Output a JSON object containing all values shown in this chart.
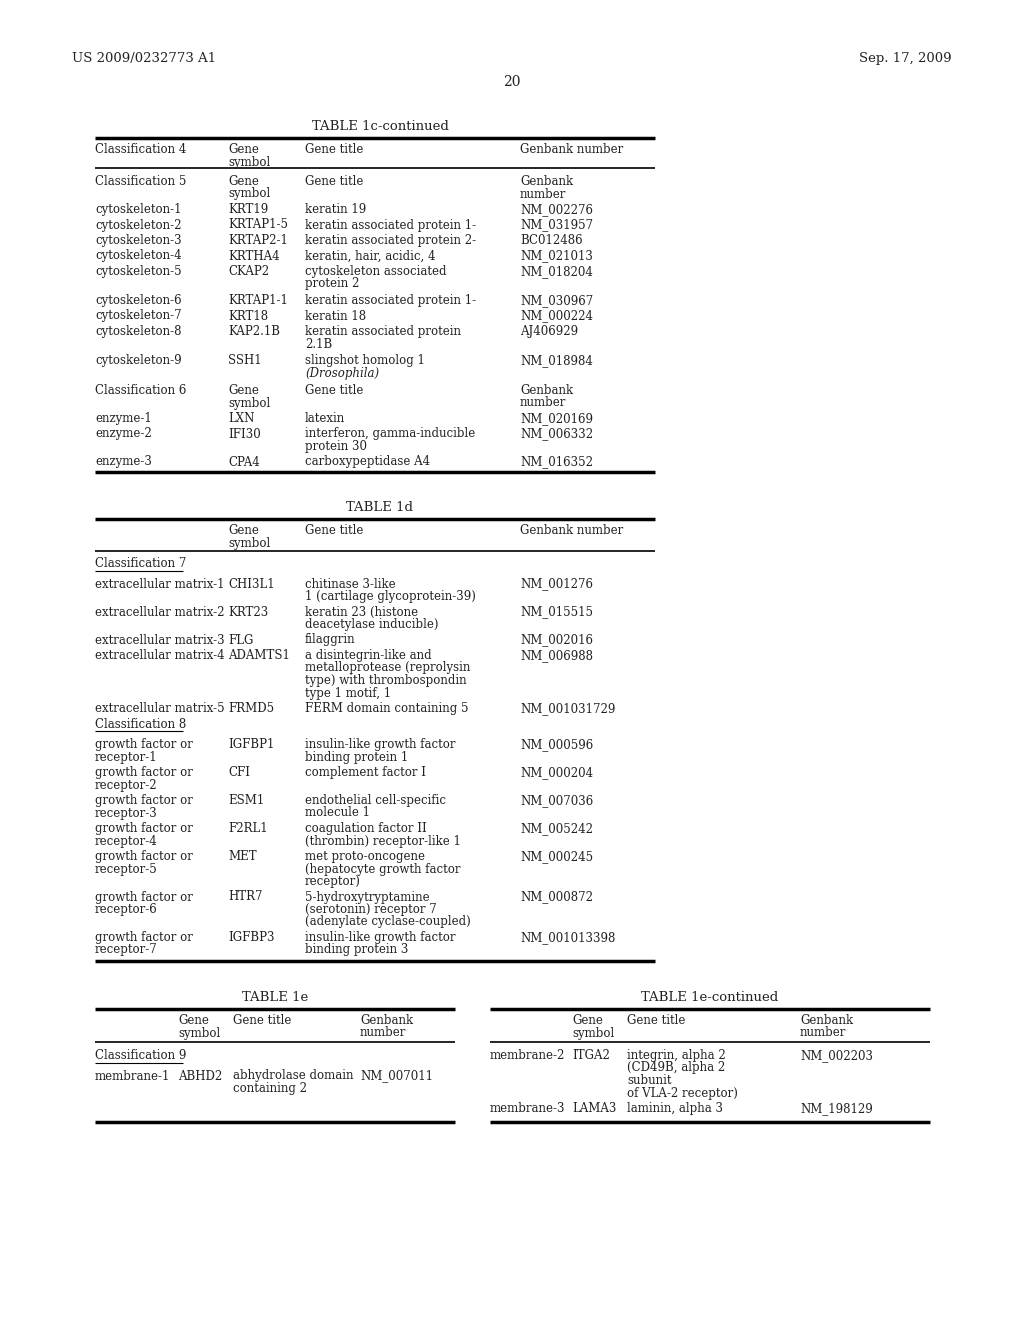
{
  "header_left": "US 2009/0232773 A1",
  "header_right": "Sep. 17, 2009",
  "page_number": "20",
  "bg": "#ffffff",
  "tc": "#222222",
  "table1c_title": "TABLE 1c-continued",
  "table1c_col0_header": [
    "Classification 4"
  ],
  "table1c_col1_header": [
    "Gene",
    "symbol"
  ],
  "table1c_col2_header": [
    "Gene title"
  ],
  "table1c_col3_header": [
    "Genbank number"
  ],
  "table1c_rows": [
    [
      "Classification 5",
      "Gene\nsymbol",
      "Gene title",
      "Genbank\nnumber"
    ],
    [
      "cytoskeleton-1",
      "KRT19",
      "keratin 19",
      "NM_002276"
    ],
    [
      "cytoskeleton-2",
      "KRTAP1-5",
      "keratin associated protein 1-",
      "NM_031957"
    ],
    [
      "cytoskeleton-3",
      "KRTAP2-1",
      "keratin associated protein 2-",
      "BC012486"
    ],
    [
      "cytoskeleton-4",
      "KRTHA4",
      "keratin, hair, acidic, 4",
      "NM_021013"
    ],
    [
      "cytoskeleton-5",
      "CKAP2",
      "cytoskeleton associated\nprotein 2",
      "NM_018204"
    ],
    [
      "cytoskeleton-6",
      "KRTAP1-1",
      "keratin associated protein 1-",
      "NM_030967"
    ],
    [
      "cytoskeleton-7",
      "KRT18",
      "keratin 18",
      "NM_000224"
    ],
    [
      "cytoskeleton-8",
      "KAP2.1B",
      "keratin associated protein\n2.1B",
      "AJ406929"
    ],
    [
      "cytoskeleton-9",
      "SSH1",
      "slingshot homolog 1\n(Drosophila)",
      "NM_018984"
    ],
    [
      "Classification 6",
      "Gene\nsymbol",
      "Gene title",
      "Genbank\nnumber"
    ],
    [
      "enzyme-1",
      "LXN",
      "latexin",
      "NM_020169"
    ],
    [
      "enzyme-2",
      "IFI30",
      "interferon, gamma-inducible\nprotein 30",
      "NM_006332"
    ],
    [
      "enzyme-3",
      "CPA4",
      "carboxypeptidase A4",
      "NM_016352"
    ]
  ],
  "table1d_title": "TABLE 1d",
  "table1d_rows": [
    [
      "Classification 7",
      "",
      "",
      ""
    ],
    [
      "extracellular matrix-1",
      "CHI3L1",
      "chitinase 3-like\n1 (cartilage glycoprotein-39)",
      "NM_001276"
    ],
    [
      "extracellular matrix-2",
      "KRT23",
      "keratin 23 (histone\ndeacetylase inducible)",
      "NM_015515"
    ],
    [
      "extracellular matrix-3",
      "FLG",
      "filaggrin",
      "NM_002016"
    ],
    [
      "extracellular matrix-4",
      "ADAMTS1",
      "a disintegrin-like and\nmetalloprotease (reprolysin\ntype) with thrombospondin\ntype 1 motif, 1",
      "NM_006988"
    ],
    [
      "extracellular matrix-5\nClassification 8",
      "FRMD5",
      "FERM domain containing 5",
      "NM_001031729"
    ],
    [
      "growth factor or\nreceptor-1",
      "IGFBP1",
      "insulin-like growth factor\nbinding protein 1",
      "NM_000596"
    ],
    [
      "growth factor or\nreceptor-2",
      "CFI",
      "complement factor I",
      "NM_000204"
    ],
    [
      "growth factor or\nreceptor-3",
      "ESM1",
      "endothelial cell-specific\nmolecule 1",
      "NM_007036"
    ],
    [
      "growth factor or\nreceptor-4",
      "F2RL1",
      "coagulation factor II\n(thrombin) receptor-like 1",
      "NM_005242"
    ],
    [
      "growth factor or\nreceptor-5",
      "MET",
      "met proto-oncogene\n(hepatocyte growth factor\nreceptor)",
      "NM_000245"
    ],
    [
      "growth factor or\nreceptor-6",
      "HTR7",
      "5-hydroxytryptamine\n(serotonin) receptor 7\n(adenylate cyclase-coupled)",
      "NM_000872"
    ],
    [
      "growth factor or\nreceptor-7",
      "IGFBP3",
      "insulin-like growth factor\nbinding protein 3",
      "NM_001013398"
    ]
  ],
  "table1e_title": "TABLE 1e",
  "table1e_rows": [
    [
      "Classification 9",
      "",
      "",
      ""
    ],
    [
      "membrane-1",
      "ABHD2",
      "abhydrolase domain\ncontaining 2",
      "NM_007011"
    ]
  ],
  "table1e_cont_title": "TABLE 1e-continued",
  "table1e_cont_rows": [
    [
      "membrane-2",
      "ITGA2",
      "integrin, alpha 2\n(CD49B, alpha 2\nsubunit\nof VLA-2 receptor)",
      "NM_002203"
    ],
    [
      "membrane-3",
      "LAMA3",
      "laminin, alpha 3",
      "NM_198129"
    ]
  ]
}
